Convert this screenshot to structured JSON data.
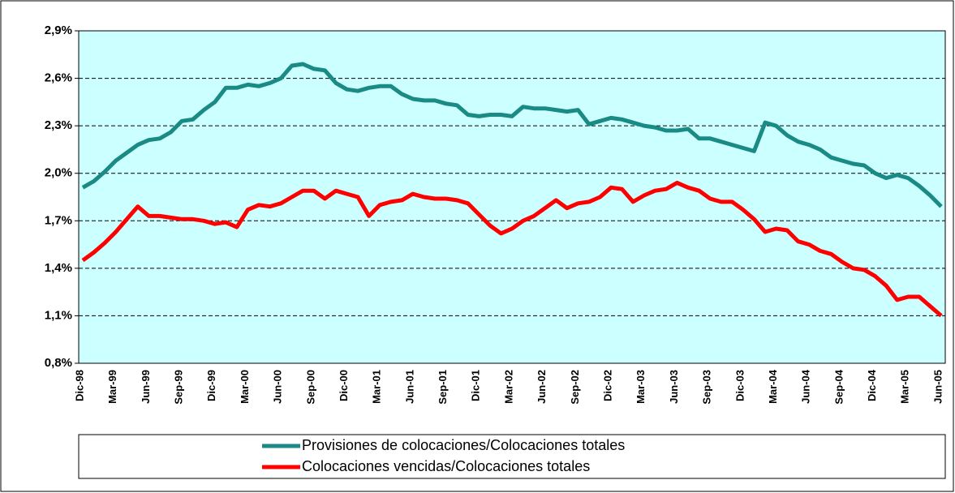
{
  "chart_data": {
    "type": "line",
    "categories": [
      "Dic-98",
      null,
      null,
      "Mar-99",
      null,
      null,
      "Jun-99",
      null,
      null,
      "Sep-99",
      null,
      null,
      "Dic-99",
      null,
      null,
      "Mar-00",
      null,
      null,
      "Jun-00",
      null,
      null,
      "Sep-00",
      null,
      null,
      "Dic-00",
      null,
      null,
      "Mar-01",
      null,
      null,
      "Jun-01",
      null,
      null,
      "Sep-01",
      null,
      null,
      "Dic-01",
      null,
      null,
      "Mar-02",
      null,
      null,
      "Jun-02",
      null,
      null,
      "Sep-02",
      null,
      null,
      "Dic-02",
      null,
      null,
      "Mar-03",
      null,
      null,
      "Jun-03",
      null,
      null,
      "Sep-03",
      null,
      null,
      "Dic-03",
      null,
      null,
      "Mar-04",
      null,
      null,
      "Jun-04",
      null,
      null,
      "Sep-04",
      null,
      null,
      "Dic-04",
      null,
      null,
      "Mar-05",
      null,
      null,
      "Jun-05"
    ],
    "series": [
      {
        "name": "Provisiones de colocaciones/Colocaciones totales",
        "color": "#1a8a85",
        "values": [
          1.91,
          1.95,
          2.01,
          2.08,
          2.13,
          2.18,
          2.21,
          2.22,
          2.26,
          2.33,
          2.34,
          2.4,
          2.45,
          2.54,
          2.54,
          2.56,
          2.55,
          2.57,
          2.6,
          2.68,
          2.69,
          2.66,
          2.65,
          2.57,
          2.53,
          2.52,
          2.54,
          2.55,
          2.55,
          2.5,
          2.47,
          2.46,
          2.46,
          2.44,
          2.43,
          2.37,
          2.36,
          2.37,
          2.37,
          2.36,
          2.42,
          2.41,
          2.41,
          2.4,
          2.39,
          2.4,
          2.31,
          2.33,
          2.35,
          2.34,
          2.32,
          2.3,
          2.29,
          2.27,
          2.27,
          2.28,
          2.22,
          2.22,
          2.2,
          2.18,
          2.16,
          2.14,
          2.32,
          2.3,
          2.24,
          2.2,
          2.18,
          2.15,
          2.1,
          2.08,
          2.06,
          2.05,
          2.0,
          1.97,
          1.99,
          1.97,
          1.92,
          1.86,
          1.79
        ]
      },
      {
        "name": "Colocaciones vencidas/Colocaciones totales",
        "color": "#ff0000",
        "values": [
          1.45,
          1.5,
          1.56,
          1.63,
          1.71,
          1.79,
          1.73,
          1.73,
          1.72,
          1.71,
          1.71,
          1.7,
          1.68,
          1.69,
          1.66,
          1.77,
          1.8,
          1.79,
          1.81,
          1.85,
          1.89,
          1.89,
          1.84,
          1.89,
          1.87,
          1.85,
          1.73,
          1.8,
          1.82,
          1.83,
          1.87,
          1.85,
          1.84,
          1.84,
          1.83,
          1.81,
          1.74,
          1.67,
          1.62,
          1.65,
          1.7,
          1.73,
          1.78,
          1.83,
          1.78,
          1.81,
          1.82,
          1.85,
          1.91,
          1.9,
          1.82,
          1.86,
          1.89,
          1.9,
          1.94,
          1.91,
          1.89,
          1.84,
          1.82,
          1.82,
          1.77,
          1.71,
          1.63,
          1.65,
          1.64,
          1.57,
          1.55,
          1.51,
          1.49,
          1.44,
          1.4,
          1.39,
          1.35,
          1.29,
          1.2,
          1.22,
          1.22,
          1.16,
          1.1
        ]
      }
    ],
    "ylim": [
      0.8,
      2.9
    ],
    "yticks": [
      {
        "value": 0.8,
        "label": "0,8%"
      },
      {
        "value": 1.1,
        "label": "1,1%"
      },
      {
        "value": 1.4,
        "label": "1,4%"
      },
      {
        "value": 1.7,
        "label": "1,7%"
      },
      {
        "value": 2.0,
        "label": "2,0%"
      },
      {
        "value": 2.3,
        "label": "2,3%"
      },
      {
        "value": 2.6,
        "label": "2,6%"
      },
      {
        "value": 2.9,
        "label": "2,9%"
      }
    ],
    "grid": true,
    "plot_background": "#ccffff",
    "legend": "bottom"
  }
}
